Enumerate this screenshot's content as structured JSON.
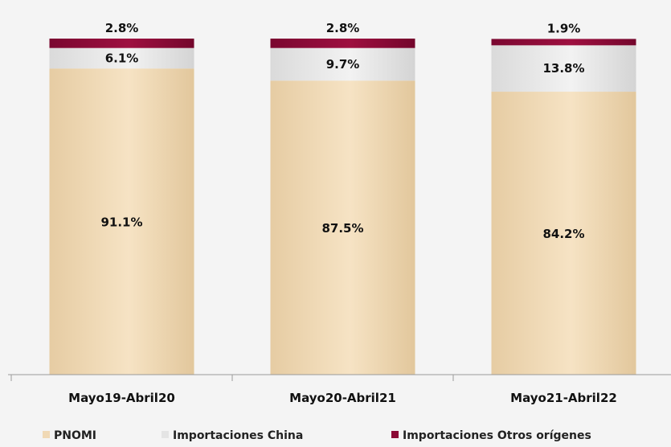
{
  "chart_data": {
    "type": "bar",
    "stacked": true,
    "categories": [
      "Mayo19-Abril20",
      "Mayo20-Abril21",
      "Mayo21-Abril22"
    ],
    "series": [
      {
        "name": "PNOMI",
        "values": [
          91.1,
          87.5,
          84.2
        ],
        "labels": [
          "91.1%",
          "87.5%",
          "84.2%"
        ],
        "color": "#f0d9b5"
      },
      {
        "name": "Importaciones China",
        "values": [
          6.1,
          9.7,
          13.8
        ],
        "labels": [
          "6.1%",
          "9.7%",
          "13.8%"
        ],
        "color": "#e4e4e4"
      },
      {
        "name": "Importaciones Otros orígenes",
        "values": [
          2.8,
          2.8,
          1.9
        ],
        "labels": [
          "2.8%",
          "2.8%",
          "1.9%"
        ],
        "color": "#8b0a35"
      }
    ],
    "ylim": [
      0,
      100
    ],
    "grid": false,
    "legend_position": "bottom-left"
  }
}
